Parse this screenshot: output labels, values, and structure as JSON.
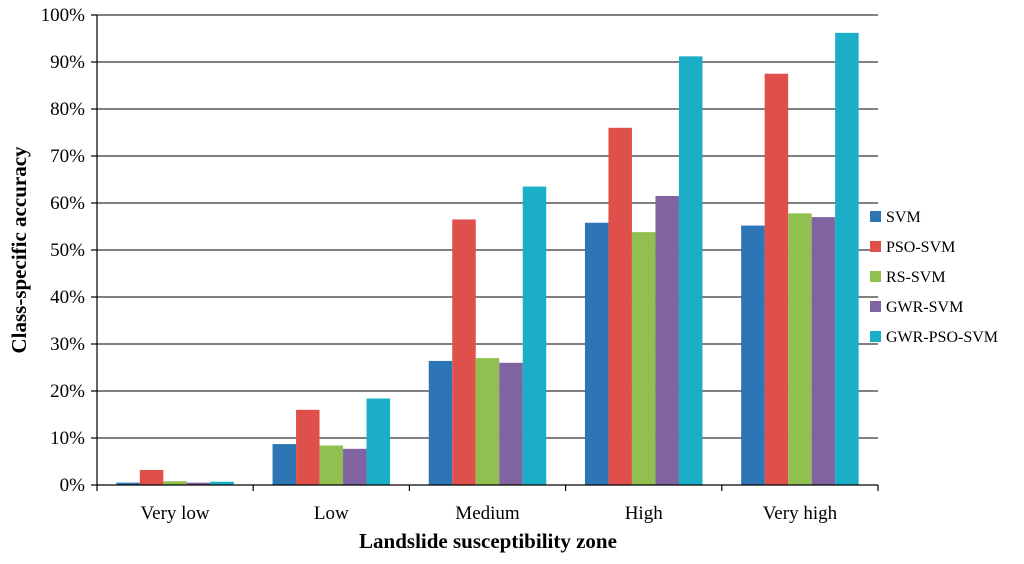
{
  "chart_data": {
    "type": "bar",
    "title": "",
    "xlabel": "Landslide susceptibility zone",
    "ylabel": "Class-specific accuracy",
    "ylim": [
      0,
      100
    ],
    "yticks": [
      0,
      10,
      20,
      30,
      40,
      50,
      60,
      70,
      80,
      90,
      100
    ],
    "ytick_suffix": "%",
    "grid": true,
    "legend_position": "right",
    "categories": [
      "Very low",
      "Low",
      "Medium",
      "High",
      "Very high"
    ],
    "series": [
      {
        "name": "SVM",
        "color": "#2e75b6",
        "values": [
          0.5,
          8.7,
          26.4,
          55.8,
          55.2
        ]
      },
      {
        "name": "PSO-SVM",
        "color": "#e0504b",
        "values": [
          3.2,
          16.0,
          56.5,
          76.0,
          87.5
        ]
      },
      {
        "name": "RS-SVM",
        "color": "#92c050",
        "values": [
          0.8,
          8.4,
          27.0,
          53.8,
          57.8
        ]
      },
      {
        "name": "GWR-SVM",
        "color": "#8064a2",
        "values": [
          0.5,
          7.7,
          26.0,
          61.5,
          57.0
        ]
      },
      {
        "name": "GWR-PSO-SVM",
        "color": "#1aafc6",
        "values": [
          0.7,
          18.4,
          63.5,
          91.2,
          96.2
        ]
      }
    ]
  }
}
